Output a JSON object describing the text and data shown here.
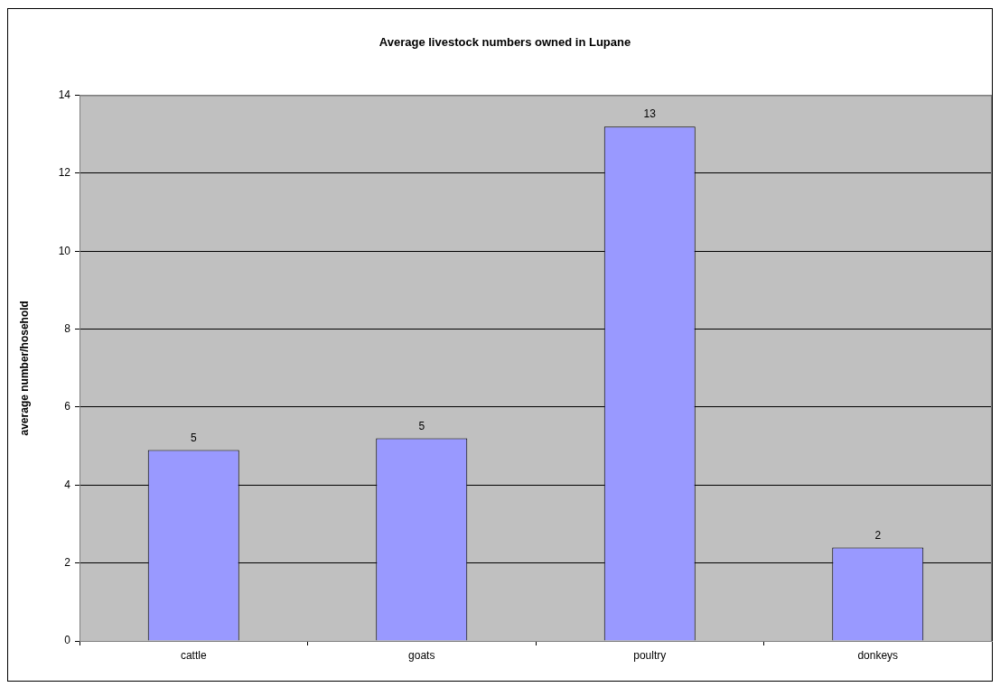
{
  "chart_data": {
    "type": "bar",
    "title": "Average livestock numbers owned in Lupane",
    "ylabel": "average number/hosehold",
    "categories": [
      "cattle",
      "goats",
      "poultry",
      "donkeys"
    ],
    "values": [
      4.9,
      5.2,
      13.2,
      2.4
    ],
    "color": "#9999ff",
    "value_labels": [
      "5",
      "5",
      "13",
      "2"
    ],
    "ylim": [
      0,
      14
    ],
    "yticks": [
      0,
      2,
      4,
      6,
      8,
      10,
      12,
      14
    ],
    "grid": "y"
  }
}
